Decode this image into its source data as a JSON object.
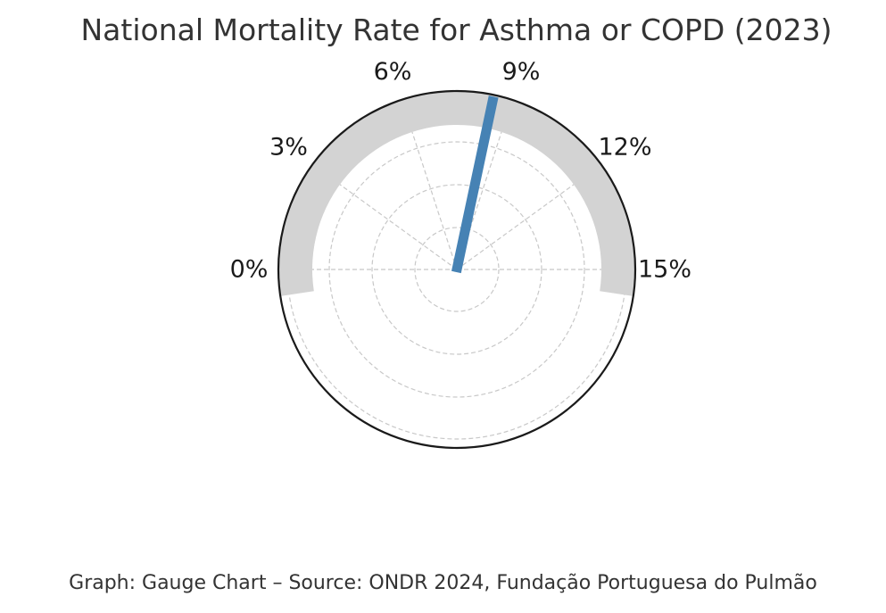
{
  "chart_data": {
    "type": "gauge",
    "title": "National Mortality Rate for Asthma or COPD (2023)",
    "value": 8.5,
    "unit": "%",
    "range": [
      0,
      15
    ],
    "ticks": [
      0,
      3,
      6,
      9,
      12,
      15
    ],
    "tick_labels": [
      "0%",
      "3%",
      "6%",
      "9%",
      "12%",
      "15%"
    ],
    "radial_grid": true,
    "colors": {
      "track": "#d3d3d3",
      "needle": "#4682b4",
      "frame": "#1a1a1a",
      "grid": "#c8c8c8",
      "text": "#333333"
    }
  },
  "caption": "Graph: Gauge Chart – Source: ONDR 2024, Fundação Portuguesa do Pulmão"
}
